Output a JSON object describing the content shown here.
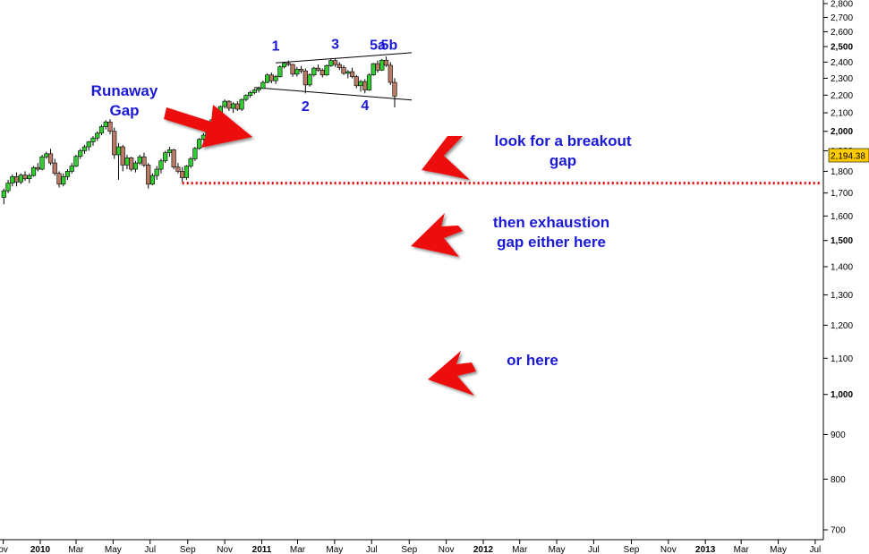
{
  "chart_data": {
    "type": "candlestick",
    "title": "",
    "xlabel": "",
    "ylabel": "",
    "ylim": [
      690,
      2830
    ],
    "y_scale": "log",
    "grid": false,
    "last_price": "2,194.38",
    "y_ticks": [
      {
        "value": 2800,
        "label": "2,800",
        "bold": false
      },
      {
        "value": 2700,
        "label": "2,700",
        "bold": false
      },
      {
        "value": 2600,
        "label": "2,600",
        "bold": false
      },
      {
        "value": 2500,
        "label": "2,500",
        "bold": true
      },
      {
        "value": 2400,
        "label": "2,400",
        "bold": false
      },
      {
        "value": 2300,
        "label": "2,300",
        "bold": false
      },
      {
        "value": 2200,
        "label": "2,200",
        "bold": false
      },
      {
        "value": 2100,
        "label": "2,100",
        "bold": false
      },
      {
        "value": 2000,
        "label": "2,000",
        "bold": true
      },
      {
        "value": 1900,
        "label": "1,900",
        "bold": false
      },
      {
        "value": 1800,
        "label": "1,800",
        "bold": false
      },
      {
        "value": 1700,
        "label": "1,700",
        "bold": false
      },
      {
        "value": 1600,
        "label": "1,600",
        "bold": false
      },
      {
        "value": 1500,
        "label": "1,500",
        "bold": true
      },
      {
        "value": 1400,
        "label": "1,400",
        "bold": false
      },
      {
        "value": 1300,
        "label": "1,300",
        "bold": false
      },
      {
        "value": 1200,
        "label": "1,200",
        "bold": false
      },
      {
        "value": 1100,
        "label": "1,100",
        "bold": false
      },
      {
        "value": 1000,
        "label": "1,000",
        "bold": true
      },
      {
        "value": 900,
        "label": "900",
        "bold": false
      },
      {
        "value": 800,
        "label": "800",
        "bold": false
      },
      {
        "value": 700,
        "label": "700",
        "bold": false
      }
    ],
    "x_ticks": [
      {
        "date": "2009-11-01",
        "label": "ov",
        "bold": false
      },
      {
        "date": "2010-01-01",
        "label": "2010",
        "bold": true
      },
      {
        "date": "2010-03-01",
        "label": "Mar",
        "bold": false
      },
      {
        "date": "2010-05-01",
        "label": "May",
        "bold": false
      },
      {
        "date": "2010-07-01",
        "label": "Jul",
        "bold": false
      },
      {
        "date": "2010-09-01",
        "label": "Sep",
        "bold": false
      },
      {
        "date": "2010-11-01",
        "label": "Nov",
        "bold": false
      },
      {
        "date": "2011-01-01",
        "label": "2011",
        "bold": true
      },
      {
        "date": "2011-03-01",
        "label": "Mar",
        "bold": false
      },
      {
        "date": "2011-05-01",
        "label": "May",
        "bold": false
      },
      {
        "date": "2011-07-01",
        "label": "Jul",
        "bold": false
      },
      {
        "date": "2011-09-01",
        "label": "Sep",
        "bold": false
      },
      {
        "date": "2011-11-01",
        "label": "Nov",
        "bold": false
      },
      {
        "date": "2012-01-01",
        "label": "2012",
        "bold": true
      },
      {
        "date": "2012-03-01",
        "label": "Mar",
        "bold": false
      },
      {
        "date": "2012-05-01",
        "label": "May",
        "bold": false
      },
      {
        "date": "2012-07-01",
        "label": "Jul",
        "bold": false
      },
      {
        "date": "2012-09-01",
        "label": "Sep",
        "bold": false
      },
      {
        "date": "2012-11-01",
        "label": "Nov",
        "bold": false
      },
      {
        "date": "2013-01-01",
        "label": "2013",
        "bold": true
      },
      {
        "date": "2013-03-01",
        "label": "Mar",
        "bold": false
      },
      {
        "date": "2013-05-01",
        "label": "May",
        "bold": false
      },
      {
        "date": "2013-07-01",
        "label": "Jul",
        "bold": false
      }
    ],
    "candles": [
      {
        "date": "2009-11-02",
        "open": 1680,
        "high": 1720,
        "low": 1650,
        "close": 1710
      },
      {
        "date": "2009-11-09",
        "open": 1710,
        "high": 1760,
        "low": 1700,
        "close": 1745
      },
      {
        "date": "2009-11-16",
        "open": 1745,
        "high": 1785,
        "low": 1730,
        "close": 1775
      },
      {
        "date": "2009-11-23",
        "open": 1775,
        "high": 1795,
        "low": 1730,
        "close": 1750
      },
      {
        "date": "2009-11-30",
        "open": 1750,
        "high": 1790,
        "low": 1740,
        "close": 1782
      },
      {
        "date": "2009-12-07",
        "open": 1782,
        "high": 1800,
        "low": 1755,
        "close": 1765
      },
      {
        "date": "2009-12-14",
        "open": 1765,
        "high": 1790,
        "low": 1745,
        "close": 1780
      },
      {
        "date": "2009-12-21",
        "open": 1780,
        "high": 1825,
        "low": 1775,
        "close": 1818
      },
      {
        "date": "2009-12-28",
        "open": 1818,
        "high": 1840,
        "low": 1800,
        "close": 1810
      },
      {
        "date": "2010-01-04",
        "open": 1810,
        "high": 1880,
        "low": 1805,
        "close": 1870
      },
      {
        "date": "2010-01-11",
        "open": 1870,
        "high": 1895,
        "low": 1860,
        "close": 1885
      },
      {
        "date": "2010-01-18",
        "open": 1885,
        "high": 1910,
        "low": 1830,
        "close": 1840
      },
      {
        "date": "2010-01-25",
        "open": 1840,
        "high": 1860,
        "low": 1780,
        "close": 1790
      },
      {
        "date": "2010-02-01",
        "open": 1790,
        "high": 1800,
        "low": 1725,
        "close": 1740
      },
      {
        "date": "2010-02-08",
        "open": 1740,
        "high": 1790,
        "low": 1730,
        "close": 1775
      },
      {
        "date": "2010-02-15",
        "open": 1775,
        "high": 1810,
        "low": 1760,
        "close": 1800
      },
      {
        "date": "2010-02-22",
        "open": 1800,
        "high": 1840,
        "low": 1790,
        "close": 1825
      },
      {
        "date": "2010-03-01",
        "open": 1825,
        "high": 1880,
        "low": 1820,
        "close": 1872
      },
      {
        "date": "2010-03-08",
        "open": 1872,
        "high": 1910,
        "low": 1860,
        "close": 1900
      },
      {
        "date": "2010-03-15",
        "open": 1900,
        "high": 1930,
        "low": 1885,
        "close": 1920
      },
      {
        "date": "2010-03-22",
        "open": 1920,
        "high": 1950,
        "low": 1900,
        "close": 1945
      },
      {
        "date": "2010-03-29",
        "open": 1945,
        "high": 1975,
        "low": 1925,
        "close": 1965
      },
      {
        "date": "2010-04-05",
        "open": 1965,
        "high": 2000,
        "low": 1950,
        "close": 1990
      },
      {
        "date": "2010-04-12",
        "open": 1990,
        "high": 2035,
        "low": 1980,
        "close": 2025
      },
      {
        "date": "2010-04-19",
        "open": 2025,
        "high": 2060,
        "low": 2010,
        "close": 2050
      },
      {
        "date": "2010-04-26",
        "open": 2050,
        "high": 2065,
        "low": 1985,
        "close": 2000
      },
      {
        "date": "2010-05-03",
        "open": 2000,
        "high": 2020,
        "low": 1860,
        "close": 1880
      },
      {
        "date": "2010-05-10",
        "open": 1880,
        "high": 1940,
        "low": 1760,
        "close": 1920
      },
      {
        "date": "2010-05-17",
        "open": 1920,
        "high": 1930,
        "low": 1800,
        "close": 1830
      },
      {
        "date": "2010-05-24",
        "open": 1830,
        "high": 1880,
        "low": 1810,
        "close": 1865
      },
      {
        "date": "2010-05-31",
        "open": 1865,
        "high": 1870,
        "low": 1800,
        "close": 1810
      },
      {
        "date": "2010-06-07",
        "open": 1810,
        "high": 1850,
        "low": 1795,
        "close": 1840
      },
      {
        "date": "2010-06-14",
        "open": 1840,
        "high": 1880,
        "low": 1830,
        "close": 1870
      },
      {
        "date": "2010-06-21",
        "open": 1870,
        "high": 1890,
        "low": 1820,
        "close": 1830
      },
      {
        "date": "2010-06-28",
        "open": 1830,
        "high": 1840,
        "low": 1720,
        "close": 1740
      },
      {
        "date": "2010-07-05",
        "open": 1740,
        "high": 1790,
        "low": 1735,
        "close": 1780
      },
      {
        "date": "2010-07-12",
        "open": 1780,
        "high": 1825,
        "low": 1760,
        "close": 1810
      },
      {
        "date": "2010-07-19",
        "open": 1810,
        "high": 1860,
        "low": 1790,
        "close": 1850
      },
      {
        "date": "2010-07-26",
        "open": 1850,
        "high": 1900,
        "low": 1840,
        "close": 1890
      },
      {
        "date": "2010-08-02",
        "open": 1890,
        "high": 1920,
        "low": 1870,
        "close": 1905
      },
      {
        "date": "2010-08-09",
        "open": 1905,
        "high": 1910,
        "low": 1810,
        "close": 1820
      },
      {
        "date": "2010-08-16",
        "open": 1820,
        "high": 1840,
        "low": 1790,
        "close": 1800
      },
      {
        "date": "2010-08-23",
        "open": 1800,
        "high": 1820,
        "low": 1750,
        "close": 1770
      },
      {
        "date": "2010-08-30",
        "open": 1770,
        "high": 1830,
        "low": 1760,
        "close": 1825
      },
      {
        "date": "2010-09-06",
        "open": 1825,
        "high": 1870,
        "low": 1815,
        "close": 1860
      },
      {
        "date": "2010-09-13",
        "open": 1860,
        "high": 1920,
        "low": 1850,
        "close": 1912
      },
      {
        "date": "2010-09-20",
        "open": 1912,
        "high": 1965,
        "low": 1905,
        "close": 1958
      },
      {
        "date": "2010-09-27",
        "open": 1958,
        "high": 1990,
        "low": 1950,
        "close": 1980
      },
      {
        "date": "2010-10-04",
        "open": 1980,
        "high": 2030,
        "low": 1970,
        "close": 2022
      },
      {
        "date": "2010-10-11",
        "open": 2022,
        "high": 2070,
        "low": 2015,
        "close": 2062
      },
      {
        "date": "2010-10-18",
        "open": 2062,
        "high": 2100,
        "low": 2050,
        "close": 2092
      },
      {
        "date": "2010-10-25",
        "open": 2092,
        "high": 2140,
        "low": 2085,
        "close": 2135
      },
      {
        "date": "2010-11-01",
        "open": 2135,
        "high": 2175,
        "low": 2125,
        "close": 2165
      },
      {
        "date": "2010-11-08",
        "open": 2165,
        "high": 2170,
        "low": 2110,
        "close": 2125
      },
      {
        "date": "2010-11-15",
        "open": 2125,
        "high": 2160,
        "low": 2100,
        "close": 2150
      },
      {
        "date": "2010-11-22",
        "open": 2150,
        "high": 2165,
        "low": 2110,
        "close": 2120
      },
      {
        "date": "2010-11-29",
        "open": 2120,
        "high": 2180,
        "low": 2110,
        "close": 2175
      },
      {
        "date": "2010-12-06",
        "open": 2175,
        "high": 2205,
        "low": 2165,
        "close": 2198
      },
      {
        "date": "2010-12-13",
        "open": 2198,
        "high": 2225,
        "low": 2185,
        "close": 2215
      },
      {
        "date": "2010-12-20",
        "open": 2215,
        "high": 2240,
        "low": 2205,
        "close": 2230
      },
      {
        "date": "2010-12-27",
        "open": 2230,
        "high": 2250,
        "low": 2215,
        "close": 2240
      },
      {
        "date": "2011-01-03",
        "open": 2240,
        "high": 2285,
        "low": 2235,
        "close": 2275
      },
      {
        "date": "2011-01-10",
        "open": 2275,
        "high": 2330,
        "low": 2270,
        "close": 2320
      },
      {
        "date": "2011-01-17",
        "open": 2320,
        "high": 2335,
        "low": 2270,
        "close": 2285
      },
      {
        "date": "2011-01-24",
        "open": 2285,
        "high": 2320,
        "low": 2265,
        "close": 2310
      },
      {
        "date": "2011-01-31",
        "open": 2310,
        "high": 2380,
        "low": 2305,
        "close": 2370
      },
      {
        "date": "2011-02-07",
        "open": 2370,
        "high": 2400,
        "low": 2360,
        "close": 2392
      },
      {
        "date": "2011-02-14",
        "open": 2392,
        "high": 2410,
        "low": 2375,
        "close": 2385
      },
      {
        "date": "2011-02-21",
        "open": 2385,
        "high": 2390,
        "low": 2310,
        "close": 2325
      },
      {
        "date": "2011-02-28",
        "open": 2325,
        "high": 2370,
        "low": 2310,
        "close": 2355
      },
      {
        "date": "2011-03-07",
        "open": 2355,
        "high": 2375,
        "low": 2330,
        "close": 2345
      },
      {
        "date": "2011-03-14",
        "open": 2345,
        "high": 2360,
        "low": 2210,
        "close": 2260
      },
      {
        "date": "2011-03-21",
        "open": 2260,
        "high": 2330,
        "low": 2250,
        "close": 2320
      },
      {
        "date": "2011-03-28",
        "open": 2320,
        "high": 2370,
        "low": 2310,
        "close": 2362
      },
      {
        "date": "2011-04-04",
        "open": 2362,
        "high": 2385,
        "low": 2340,
        "close": 2350
      },
      {
        "date": "2011-04-11",
        "open": 2350,
        "high": 2360,
        "low": 2305,
        "close": 2320
      },
      {
        "date": "2011-04-18",
        "open": 2320,
        "high": 2385,
        "low": 2315,
        "close": 2378
      },
      {
        "date": "2011-04-25",
        "open": 2378,
        "high": 2420,
        "low": 2370,
        "close": 2410
      },
      {
        "date": "2011-05-02",
        "open": 2410,
        "high": 2425,
        "low": 2370,
        "close": 2385
      },
      {
        "date": "2011-05-09",
        "open": 2385,
        "high": 2400,
        "low": 2350,
        "close": 2365
      },
      {
        "date": "2011-05-16",
        "open": 2365,
        "high": 2380,
        "low": 2320,
        "close": 2330
      },
      {
        "date": "2011-05-23",
        "open": 2330,
        "high": 2350,
        "low": 2300,
        "close": 2340
      },
      {
        "date": "2011-05-30",
        "open": 2340,
        "high": 2365,
        "low": 2300,
        "close": 2310
      },
      {
        "date": "2011-06-06",
        "open": 2310,
        "high": 2320,
        "low": 2240,
        "close": 2255
      },
      {
        "date": "2011-06-13",
        "open": 2255,
        "high": 2290,
        "low": 2220,
        "close": 2280
      },
      {
        "date": "2011-06-20",
        "open": 2280,
        "high": 2295,
        "low": 2210,
        "close": 2230
      },
      {
        "date": "2011-06-27",
        "open": 2230,
        "high": 2330,
        "low": 2225,
        "close": 2320
      },
      {
        "date": "2011-07-04",
        "open": 2320,
        "high": 2395,
        "low": 2315,
        "close": 2390
      },
      {
        "date": "2011-07-11",
        "open": 2390,
        "high": 2410,
        "low": 2335,
        "close": 2350
      },
      {
        "date": "2011-07-18",
        "open": 2350,
        "high": 2420,
        "low": 2345,
        "close": 2412
      },
      {
        "date": "2011-07-25",
        "open": 2412,
        "high": 2435,
        "low": 2370,
        "close": 2380
      },
      {
        "date": "2011-08-01",
        "open": 2380,
        "high": 2400,
        "low": 2260,
        "close": 2275
      },
      {
        "date": "2011-08-08",
        "open": 2275,
        "high": 2300,
        "low": 2130,
        "close": 2194.38
      }
    ],
    "trendlines": [
      {
        "name": "upper",
        "points": [
          [
            "2011-01-24",
            2395
          ],
          [
            "2011-09-05",
            2460
          ]
        ]
      },
      {
        "name": "lower",
        "points": [
          [
            "2010-12-20",
            2245
          ],
          [
            "2011-09-05",
            2172
          ]
        ]
      }
    ],
    "horizontal_lines": [
      {
        "value": 1745,
        "from": "2010-08-23",
        "style": "dotted",
        "color": "#e00000"
      }
    ],
    "wave_labels": [
      {
        "label": "1",
        "date": "2011-01-24",
        "value": 2475
      },
      {
        "label": "2",
        "date": "2011-03-14",
        "value": 2110
      },
      {
        "label": "3",
        "date": "2011-05-02",
        "value": 2485
      },
      {
        "label": "4",
        "date": "2011-06-20",
        "value": 2115
      },
      {
        "label": "5a",
        "date": "2011-07-11",
        "value": 2480
      },
      {
        "label": "5b",
        "date": "2011-07-30",
        "value": 2480
      }
    ],
    "annotations": [
      {
        "lines": [
          "Runaway",
          "Gap"
        ],
        "position": "upper-left"
      },
      {
        "lines": [
          "look for a breakout",
          "gap"
        ],
        "position": "right-upper"
      },
      {
        "lines": [
          "then exhaustion",
          "gap either here"
        ],
        "position": "right-middle"
      },
      {
        "lines": [
          "or here"
        ],
        "position": "right-lower"
      }
    ]
  },
  "colors": {
    "up_candle": "#33cc33",
    "down_candle": "#b97a66",
    "candle_outline": "#000000",
    "annotation_text": "#1a1ad6",
    "arrow": "#ee1111",
    "last_price_box": "#ffcc00",
    "dotted_line": "#e00000"
  }
}
